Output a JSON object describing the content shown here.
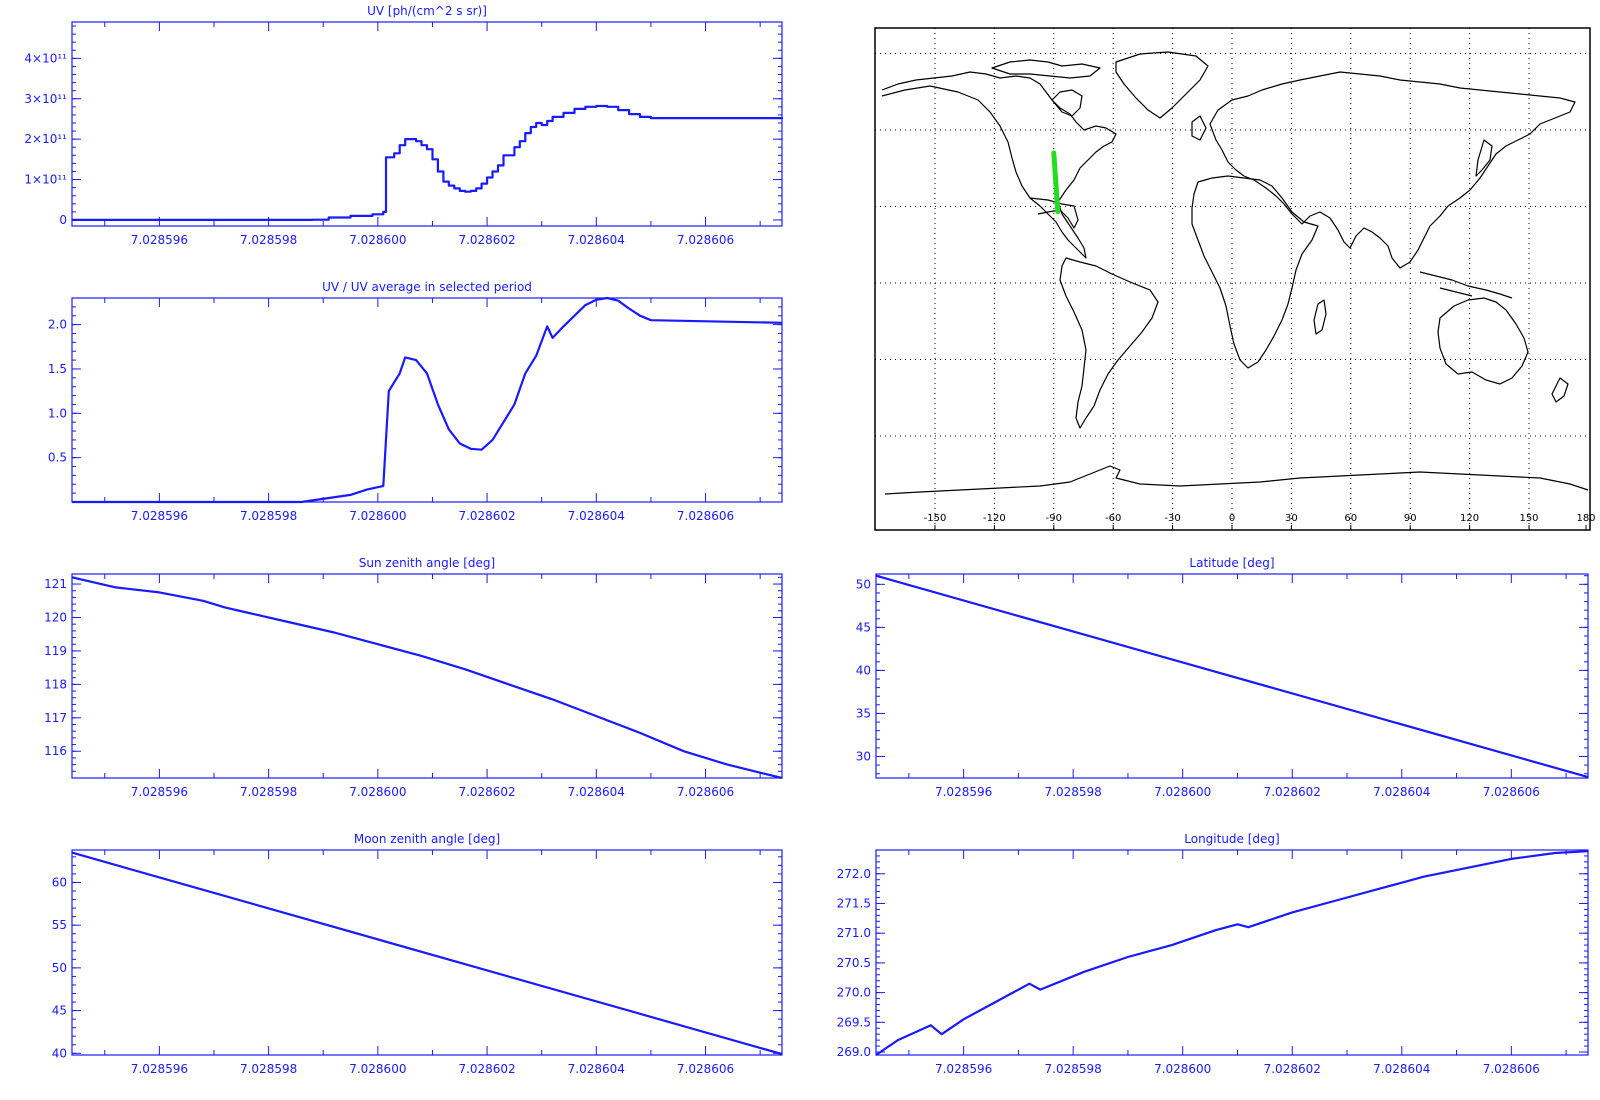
{
  "colors": {
    "axis": "#1a1aff",
    "line": "#1a1aff",
    "map_outline": "#000000",
    "track": "#22dd22",
    "grid": "#000000"
  },
  "x_tick_labels": [
    "7.028596",
    "7.028598",
    "7.028600",
    "7.028602",
    "7.028604",
    "7.028606"
  ],
  "map": {
    "lon_tick_labels": [
      "-150",
      "-120",
      "-90",
      "-60",
      "-30",
      "0",
      "30",
      "60",
      "90",
      "120",
      "150",
      "180"
    ],
    "track": [
      {
        "lon": -90,
        "lat": 51
      },
      {
        "lon": -88,
        "lat": 28
      }
    ]
  },
  "chart_data": [
    {
      "id": "uv",
      "type": "line",
      "style": "step",
      "title": "UV [ph/(cm^2 s sr)]",
      "xlim": [
        7.0285944,
        7.0286074
      ],
      "ylim": [
        -15000000000.0,
        490000000000.0
      ],
      "yticks": [
        {
          "v": 0,
          "label": "0"
        },
        {
          "v": 100000000000.0,
          "label": "1×10¹¹"
        },
        {
          "v": 200000000000.0,
          "label": "2×10¹¹"
        },
        {
          "v": 300000000000.0,
          "label": "3×10¹¹"
        },
        {
          "v": 400000000000.0,
          "label": "4×10¹¹"
        }
      ],
      "points": [
        [
          7.0285944,
          0.0
        ],
        [
          7.028598,
          0.0
        ],
        [
          7.0285988,
          500000000.0
        ],
        [
          7.0285991,
          6000000000.0
        ],
        [
          7.0285995,
          10000000000.0
        ],
        [
          7.0285999,
          14000000000.0
        ],
        [
          7.0286001,
          20000000000.0
        ],
        [
          7.02860015,
          155000000000.0
        ],
        [
          7.0286003,
          165000000000.0
        ],
        [
          7.0286004,
          185000000000.0
        ],
        [
          7.0286005,
          200000000000.0
        ],
        [
          7.0286007,
          195000000000.0
        ],
        [
          7.0286008,
          185000000000.0
        ],
        [
          7.0286009,
          175000000000.0
        ],
        [
          7.028601,
          150000000000.0
        ],
        [
          7.0286011,
          120000000000.0
        ],
        [
          7.0286012,
          95000000000.0
        ],
        [
          7.0286013,
          85000000000.0
        ],
        [
          7.0286014,
          78000000000.0
        ],
        [
          7.0286015,
          72000000000.0
        ],
        [
          7.0286016,
          70000000000.0
        ],
        [
          7.0286017,
          72000000000.0
        ],
        [
          7.0286018,
          78000000000.0
        ],
        [
          7.0286019,
          90000000000.0
        ],
        [
          7.028602,
          105000000000.0
        ],
        [
          7.0286021,
          120000000000.0
        ],
        [
          7.0286022,
          135000000000.0
        ],
        [
          7.0286023,
          160000000000.0
        ],
        [
          7.0286025,
          180000000000.0
        ],
        [
          7.0286026,
          195000000000.0
        ],
        [
          7.0286027,
          215000000000.0
        ],
        [
          7.0286028,
          230000000000.0
        ],
        [
          7.0286029,
          240000000000.0
        ],
        [
          7.028603,
          235000000000.0
        ],
        [
          7.0286031,
          245000000000.0
        ],
        [
          7.0286032,
          255000000000.0
        ],
        [
          7.0286034,
          265000000000.0
        ],
        [
          7.0286036,
          275000000000.0
        ],
        [
          7.0286038,
          280000000000.0
        ],
        [
          7.028604,
          282000000000.0
        ],
        [
          7.0286042,
          280000000000.0
        ],
        [
          7.0286044,
          272000000000.0
        ],
        [
          7.0286046,
          262000000000.0
        ],
        [
          7.0286048,
          255000000000.0
        ],
        [
          7.028605,
          252000000000.0
        ],
        [
          7.0286074,
          250000000000.0
        ]
      ]
    },
    {
      "id": "uv_ratio",
      "type": "line",
      "title": "UV / UV average in selected period",
      "xlim": [
        7.0285944,
        7.0286074
      ],
      "ylim": [
        0.0,
        2.3
      ],
      "yticks": [
        {
          "v": 0.5,
          "label": "0.5"
        },
        {
          "v": 1.0,
          "label": "1.0"
        },
        {
          "v": 1.5,
          "label": "1.5"
        },
        {
          "v": 2.0,
          "label": "2.0"
        }
      ],
      "points": [
        [
          7.0285944,
          0.0
        ],
        [
          7.0285986,
          0.0
        ],
        [
          7.0285995,
          0.08
        ],
        [
          7.0285998,
          0.14
        ],
        [
          7.0286001,
          0.18
        ],
        [
          7.0286002,
          1.25
        ],
        [
          7.0286004,
          1.45
        ],
        [
          7.0286005,
          1.63
        ],
        [
          7.0286007,
          1.6
        ],
        [
          7.0286009,
          1.45
        ],
        [
          7.0286011,
          1.1
        ],
        [
          7.0286013,
          0.82
        ],
        [
          7.0286015,
          0.66
        ],
        [
          7.0286017,
          0.6
        ],
        [
          7.0286019,
          0.59
        ],
        [
          7.0286021,
          0.7
        ],
        [
          7.0286023,
          0.9
        ],
        [
          7.0286025,
          1.1
        ],
        [
          7.0286027,
          1.45
        ],
        [
          7.0286029,
          1.65
        ],
        [
          7.0286031,
          1.98
        ],
        [
          7.0286032,
          1.85
        ],
        [
          7.0286034,
          1.98
        ],
        [
          7.0286036,
          2.1
        ],
        [
          7.0286038,
          2.22
        ],
        [
          7.028604,
          2.28
        ],
        [
          7.0286042,
          2.3
        ],
        [
          7.0286044,
          2.27
        ],
        [
          7.0286046,
          2.18
        ],
        [
          7.0286048,
          2.1
        ],
        [
          7.028605,
          2.05
        ],
        [
          7.0286074,
          2.02
        ]
      ]
    },
    {
      "id": "sun_zenith",
      "type": "line",
      "title": "Sun zenith angle [deg]",
      "xlim": [
        7.0285944,
        7.0286074
      ],
      "ylim": [
        115.2,
        121.3
      ],
      "yticks": [
        {
          "v": 116,
          "label": "116"
        },
        {
          "v": 117,
          "label": "117"
        },
        {
          "v": 118,
          "label": "118"
        },
        {
          "v": 119,
          "label": "119"
        },
        {
          "v": 120,
          "label": "120"
        },
        {
          "v": 121,
          "label": "121"
        }
      ],
      "points": [
        [
          7.0285944,
          121.2
        ],
        [
          7.0285952,
          120.9
        ],
        [
          7.028596,
          120.75
        ],
        [
          7.0285968,
          120.5
        ],
        [
          7.0285972,
          120.3
        ],
        [
          7.0285976,
          120.15
        ],
        [
          7.0285984,
          119.85
        ],
        [
          7.0285992,
          119.55
        ],
        [
          7.0286,
          119.2
        ],
        [
          7.0286008,
          118.85
        ],
        [
          7.0286016,
          118.45
        ],
        [
          7.0286024,
          118.0
        ],
        [
          7.0286032,
          117.55
        ],
        [
          7.028604,
          117.05
        ],
        [
          7.0286048,
          116.55
        ],
        [
          7.0286056,
          116.0
        ],
        [
          7.0286064,
          115.6
        ],
        [
          7.0286074,
          115.2
        ]
      ]
    },
    {
      "id": "latitude",
      "type": "line",
      "title": "Latitude [deg]",
      "xlim": [
        7.0285944,
        7.0286074
      ],
      "ylim": [
        27.5,
        51.2
      ],
      "yticks": [
        {
          "v": 30,
          "label": "30"
        },
        {
          "v": 35,
          "label": "35"
        },
        {
          "v": 40,
          "label": "40"
        },
        {
          "v": 45,
          "label": "45"
        },
        {
          "v": 50,
          "label": "50"
        }
      ],
      "points": [
        [
          7.0285944,
          51.0
        ],
        [
          7.0286074,
          27.6
        ]
      ]
    },
    {
      "id": "moon_zenith",
      "type": "line",
      "title": "Moon zenith angle [deg]",
      "xlim": [
        7.0285944,
        7.0286074
      ],
      "ylim": [
        39.8,
        63.8
      ],
      "yticks": [
        {
          "v": 40,
          "label": "40"
        },
        {
          "v": 45,
          "label": "45"
        },
        {
          "v": 50,
          "label": "50"
        },
        {
          "v": 55,
          "label": "55"
        },
        {
          "v": 60,
          "label": "60"
        }
      ],
      "points": [
        [
          7.0285944,
          63.5
        ],
        [
          7.0286074,
          39.9
        ]
      ]
    },
    {
      "id": "longitude",
      "type": "line",
      "title": "Longitude [deg]",
      "xlim": [
        7.0285944,
        7.0286074
      ],
      "ylim": [
        268.95,
        272.4
      ],
      "yticks": [
        {
          "v": 269.0,
          "label": "269.0"
        },
        {
          "v": 269.5,
          "label": "269.5"
        },
        {
          "v": 270.0,
          "label": "270.0"
        },
        {
          "v": 270.5,
          "label": "270.5"
        },
        {
          "v": 271.0,
          "label": "271.0"
        },
        {
          "v": 271.5,
          "label": "271.5"
        },
        {
          "v": 272.0,
          "label": "272.0"
        }
      ],
      "points": [
        [
          7.0285944,
          268.95
        ],
        [
          7.0285948,
          269.2
        ],
        [
          7.0285954,
          269.45
        ],
        [
          7.0285956,
          269.3
        ],
        [
          7.028596,
          269.55
        ],
        [
          7.0285966,
          269.85
        ],
        [
          7.0285972,
          270.15
        ],
        [
          7.0285974,
          270.05
        ],
        [
          7.0285982,
          270.35
        ],
        [
          7.028599,
          270.6
        ],
        [
          7.0285998,
          270.8
        ],
        [
          7.0286006,
          271.05
        ],
        [
          7.028601,
          271.15
        ],
        [
          7.0286012,
          271.1
        ],
        [
          7.028602,
          271.35
        ],
        [
          7.0286028,
          271.55
        ],
        [
          7.0286036,
          271.75
        ],
        [
          7.0286044,
          271.95
        ],
        [
          7.0286052,
          272.1
        ],
        [
          7.028606,
          272.25
        ],
        [
          7.0286068,
          272.35
        ],
        [
          7.0286074,
          272.38
        ]
      ]
    }
  ]
}
